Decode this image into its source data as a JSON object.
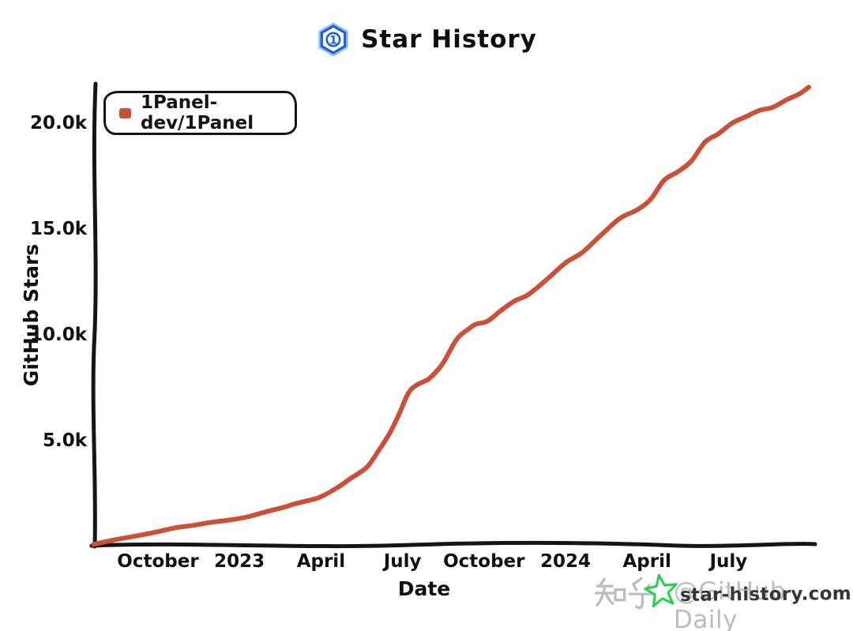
{
  "page": {
    "background": "#ffffff"
  },
  "header": {
    "title": "Star History",
    "logo_icon": "one-panel-hexagon-icon",
    "logo_color": "#1d5fd6"
  },
  "legend": {
    "items": [
      {
        "label": "1Panel-dev/1Panel",
        "marker_color": "#c75139",
        "marker_shape": "rounded-square"
      }
    ]
  },
  "axes": {
    "x": {
      "title": "Date",
      "ticks": [
        {
          "label": "October",
          "date": "2022-10-01"
        },
        {
          "label": "2023",
          "date": "2023-01-01"
        },
        {
          "label": "April",
          "date": "2023-04-01"
        },
        {
          "label": "July",
          "date": "2023-07-01"
        },
        {
          "label": "October",
          "date": "2023-10-01"
        },
        {
          "label": "2024",
          "date": "2024-01-01"
        },
        {
          "label": "April",
          "date": "2024-04-01"
        },
        {
          "label": "July",
          "date": "2024-07-01"
        }
      ]
    },
    "y": {
      "title": "GitHub Stars",
      "ticks": [
        {
          "label": "5.0k",
          "value": 5000
        },
        {
          "label": "10.0k",
          "value": 10000
        },
        {
          "label": "15.0k",
          "value": 15000
        },
        {
          "label": "20.0k",
          "value": 20000
        }
      ]
    }
  },
  "chart_data": {
    "type": "line",
    "title": "Star History",
    "xlabel": "Date",
    "ylabel": "GitHub Stars",
    "x_range": [
      "2022-07-20",
      "2024-09-30"
    ],
    "ylim": [
      0,
      22000
    ],
    "grid": false,
    "legend_position": "top-left",
    "style": "hand-drawn-xkcd",
    "series": [
      {
        "name": "1Panel-dev/1Panel",
        "color": "#c75139",
        "points": [
          {
            "date": "2022-07-20",
            "stars": 100
          },
          {
            "date": "2022-08-15",
            "stars": 330
          },
          {
            "date": "2022-09-10",
            "stars": 520
          },
          {
            "date": "2022-10-01",
            "stars": 700
          },
          {
            "date": "2022-10-20",
            "stars": 880
          },
          {
            "date": "2022-11-10",
            "stars": 1000
          },
          {
            "date": "2022-12-01",
            "stars": 1150
          },
          {
            "date": "2022-12-20",
            "stars": 1250
          },
          {
            "date": "2023-01-10",
            "stars": 1400
          },
          {
            "date": "2023-02-01",
            "stars": 1650
          },
          {
            "date": "2023-02-20",
            "stars": 1850
          },
          {
            "date": "2023-03-01",
            "stars": 2000
          },
          {
            "date": "2023-03-20",
            "stars": 2200
          },
          {
            "date": "2023-04-01",
            "stars": 2350
          },
          {
            "date": "2023-04-20",
            "stars": 2800
          },
          {
            "date": "2023-05-05",
            "stars": 3250
          },
          {
            "date": "2023-05-22",
            "stars": 3750
          },
          {
            "date": "2023-06-05",
            "stars": 4550
          },
          {
            "date": "2023-06-12",
            "stars": 5000
          },
          {
            "date": "2023-06-19",
            "stars": 5500
          },
          {
            "date": "2023-06-28",
            "stars": 6300
          },
          {
            "date": "2023-07-07",
            "stars": 7200
          },
          {
            "date": "2023-07-14",
            "stars": 7550
          },
          {
            "date": "2023-07-25",
            "stars": 7800
          },
          {
            "date": "2023-08-01",
            "stars": 7950
          },
          {
            "date": "2023-08-15",
            "stars": 8600
          },
          {
            "date": "2023-09-01",
            "stars": 9800
          },
          {
            "date": "2023-09-15",
            "stars": 10300
          },
          {
            "date": "2023-09-22",
            "stars": 10500
          },
          {
            "date": "2023-10-05",
            "stars": 10650
          },
          {
            "date": "2023-10-20",
            "stars": 11150
          },
          {
            "date": "2023-11-05",
            "stars": 11600
          },
          {
            "date": "2023-11-20",
            "stars": 11900
          },
          {
            "date": "2023-12-10",
            "stars": 12600
          },
          {
            "date": "2024-01-01",
            "stars": 13400
          },
          {
            "date": "2024-01-20",
            "stars": 13900
          },
          {
            "date": "2024-02-10",
            "stars": 14700
          },
          {
            "date": "2024-03-01",
            "stars": 15500
          },
          {
            "date": "2024-03-20",
            "stars": 15900
          },
          {
            "date": "2024-04-05",
            "stars": 16400
          },
          {
            "date": "2024-04-20",
            "stars": 17300
          },
          {
            "date": "2024-05-05",
            "stars": 17700
          },
          {
            "date": "2024-05-20",
            "stars": 18200
          },
          {
            "date": "2024-06-05",
            "stars": 19100
          },
          {
            "date": "2024-06-20",
            "stars": 19500
          },
          {
            "date": "2024-07-05",
            "stars": 20000
          },
          {
            "date": "2024-07-20",
            "stars": 20300
          },
          {
            "date": "2024-08-05",
            "stars": 20600
          },
          {
            "date": "2024-08-20",
            "stars": 20750
          },
          {
            "date": "2024-09-05",
            "stars": 21100
          },
          {
            "date": "2024-09-20",
            "stars": 21400
          },
          {
            "date": "2024-09-30",
            "stars": 21700
          }
        ]
      }
    ]
  },
  "watermarks": {
    "zhihu_full": "知乎@GitHub Daily",
    "zhihu_prefix_glyphs": "知乎",
    "zhihu_suffix": "@GitHub Daily",
    "zhihu_color": "#bcbcbc",
    "site": "star-history.com",
    "site_icon": "star-icon",
    "site_icon_color": "#2ecc52"
  },
  "colors": {
    "axis": "#151515",
    "line": "#c75139",
    "text": "#101010"
  }
}
